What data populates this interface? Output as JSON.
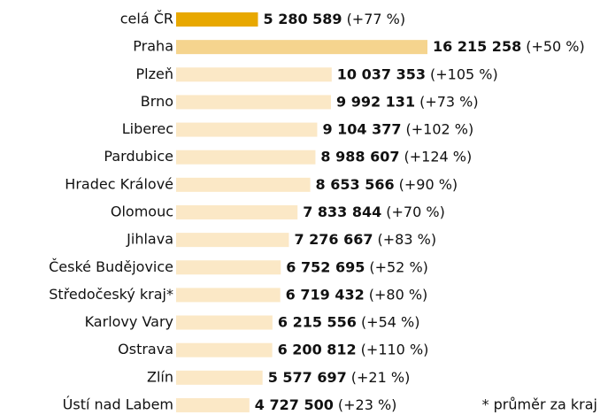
{
  "chart_data": {
    "type": "barh",
    "categories": [
      "celá ČR",
      "Praha",
      "Plzeň",
      "Brno",
      "Liberec",
      "Pardubice",
      "Hradec Králové",
      "Olomouc",
      "Jihlava",
      "České Budějovice",
      "Středočeský kraj*",
      "Karlovy Vary",
      "Ostrava",
      "Zlín",
      "Ústí nad Labem"
    ],
    "values": [
      5280589,
      16215258,
      10037353,
      9992131,
      9104377,
      8988607,
      8653566,
      7833844,
      7276667,
      6752695,
      6719432,
      6215556,
      6200812,
      5577697,
      4727500
    ],
    "value_labels": [
      "5 280 589",
      "16 215 258",
      "10 037 353",
      "9 992 131",
      "9 104 377",
      "8 988 607",
      "8 653 566",
      "7 833 844",
      "7 276 667",
      "6 752 695",
      "6 719 432",
      "6 215 556",
      "6 200 812",
      "5 577 697",
      "4 727 500"
    ],
    "change_labels": [
      "(+77 %)",
      "(+50 %)",
      "(+105 %)",
      "(+73 %)",
      "(+102 %)",
      "(+124 %)",
      "(+90 %)",
      "(+70 %)",
      "(+83 %)",
      "(+52 %)",
      "(+80 %)",
      "(+54 %)",
      "(+110 %)",
      "(+21 %)",
      "(+23 %)"
    ],
    "colors": [
      "#e8a800",
      "#f5d48e",
      "#fbe8c6",
      "#fbe8c6",
      "#fbe8c6",
      "#fbe8c6",
      "#fbe8c6",
      "#fbe8c6",
      "#fbe8c6",
      "#fbe8c6",
      "#fbe8c6",
      "#fbe8c6",
      "#fbe8c6",
      "#fbe8c6",
      "#fbe8c6"
    ],
    "annotation": "* průměr za kraj"
  }
}
